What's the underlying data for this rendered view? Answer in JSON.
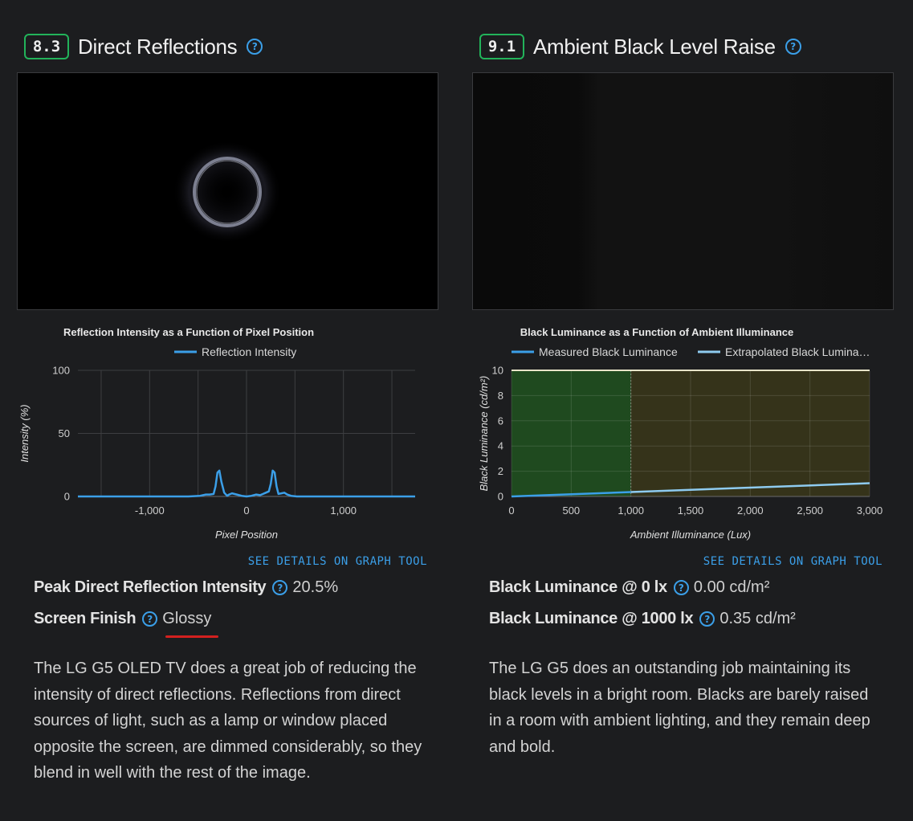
{
  "left": {
    "score": "8.3",
    "title": "Direct Reflections",
    "chart_title": "Reflection Intensity as a Function of Pixel Position",
    "legend": [
      "Reflection Intensity"
    ],
    "link": "SEE DETAILS ON GRAPH TOOL",
    "specs": [
      {
        "label": "Peak Direct Reflection Intensity",
        "value": "20.5%"
      },
      {
        "label": "Screen Finish",
        "value": "Glossy"
      }
    ],
    "description": "The LG G5 OLED TV does a great job of reducing the intensity of direct reflections. Reflections from direct sources of light, such as a lamp or window placed opposite the screen, are dimmed considerably, so they blend in well with the rest of the image."
  },
  "right": {
    "score": "9.1",
    "title": "Ambient Black Level Raise",
    "chart_title": "Black Luminance as a Function of Ambient Illuminance",
    "legend": [
      "Measured Black Luminance",
      "Extrapolated Black Lumina…"
    ],
    "link": "SEE DETAILS ON GRAPH TOOL",
    "specs": [
      {
        "label": "Black Luminance @ 0 lx",
        "value": "0.00 cd/m²"
      },
      {
        "label": "Black Luminance @ 1000 lx",
        "value": "0.35 cd/m²"
      }
    ],
    "description": "The LG G5 does an outstanding job maintaining its black levels in a bright room. Blacks are barely raised in a room with ambient lighting, and they remain deep and bold."
  },
  "colors": {
    "score_border": "#22b35a",
    "accent": "#3b9fe8",
    "line_measured": "#3b9fe8",
    "line_extrapolated": "#8ecbf0",
    "zone_green": "#1f4a1f",
    "zone_olive": "#35331a",
    "underline": "#d3201f"
  },
  "icons": {
    "help": "question-circle-icon"
  },
  "chart_data": [
    {
      "type": "line",
      "title": "Reflection Intensity as a Function of Pixel Position",
      "xlabel": "Pixel Position",
      "ylabel": "Intensity (%)",
      "xlim": [
        -1740,
        1740
      ],
      "ylim": [
        0,
        100
      ],
      "xticks": [
        -1000,
        0,
        1000
      ],
      "xtick_labels": [
        "-1,000",
        "0",
        "1,000"
      ],
      "yticks": [
        0,
        50,
        100
      ],
      "ytick_labels": [
        "0",
        "50",
        "100"
      ],
      "grid": true,
      "legend_position": "top-center",
      "series": [
        {
          "name": "Reflection Intensity",
          "x": [
            -1740,
            -1000,
            -600,
            -480,
            -420,
            -380,
            -340,
            -320,
            -300,
            -280,
            -260,
            -230,
            -200,
            -180,
            -150,
            -100,
            -50,
            0,
            50,
            100,
            140,
            170,
            200,
            230,
            250,
            270,
            290,
            310,
            330,
            360,
            390,
            420,
            460,
            520,
            700,
            1000,
            1740
          ],
          "y": [
            0,
            0,
            0,
            0.5,
            1.5,
            1.5,
            2,
            8,
            19,
            20.5,
            12,
            3,
            0.5,
            1.5,
            2.5,
            1.5,
            0.5,
            0,
            0.5,
            1.5,
            1,
            2,
            3,
            4,
            10,
            20.5,
            19,
            8,
            2,
            2.5,
            3,
            1.5,
            0.5,
            0,
            0,
            0,
            0
          ]
        }
      ]
    },
    {
      "type": "line",
      "title": "Black Luminance as a Function of Ambient Illuminance",
      "xlabel": "Ambient Illuminance (Lux)",
      "ylabel": "Black Luminance (cd/m²)",
      "xlim": [
        0,
        3000
      ],
      "ylim": [
        0,
        10
      ],
      "xticks": [
        0,
        500,
        1000,
        1500,
        2000,
        2500,
        3000
      ],
      "xtick_labels": [
        "0",
        "500",
        "1,000",
        "1,500",
        "2,000",
        "2,500",
        "3,000"
      ],
      "yticks": [
        0,
        2,
        4,
        6,
        8,
        10
      ],
      "ytick_labels": [
        "0",
        "2",
        "4",
        "6",
        "8",
        "10"
      ],
      "grid": true,
      "legend_position": "top",
      "zones": [
        {
          "from": 0,
          "to": 1000,
          "color": "green"
        },
        {
          "from": 1000,
          "to": 3000,
          "color": "olive"
        }
      ],
      "series": [
        {
          "name": "Measured Black Luminance",
          "x": [
            0,
            1000
          ],
          "y": [
            0.0,
            0.35
          ]
        },
        {
          "name": "Extrapolated Black Lumina…",
          "x": [
            1000,
            3000
          ],
          "y": [
            0.35,
            1.05
          ]
        }
      ]
    }
  ]
}
